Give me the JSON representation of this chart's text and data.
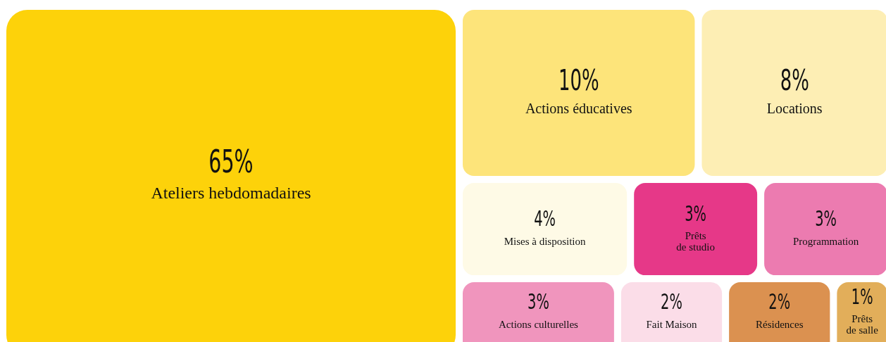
{
  "chart_data": {
    "type": "other",
    "categories": [
      "Ateliers hebdomadaires",
      "Actions éducatives",
      "Locations",
      "Mises à disposition",
      "Prêts\nde studio",
      "Programmation",
      "Actions culturelles",
      "Fait Maison",
      "Résidences",
      "Prêts\nde salle"
    ],
    "values": [
      65,
      10,
      8,
      4,
      3,
      3,
      3,
      2,
      2,
      1
    ],
    "value_labels": [
      "65%",
      "10%",
      "8%",
      "4%",
      "3%",
      "3%",
      "3%",
      "2%",
      "2%",
      "1%"
    ],
    "colors": [
      "#fdd20a",
      "#fde47a",
      "#fdeeb4",
      "#fefae6",
      "#e63888",
      "#ec7bb0",
      "#f095bd",
      "#fbdde8",
      "#db9150",
      "#e2ae5a"
    ]
  }
}
